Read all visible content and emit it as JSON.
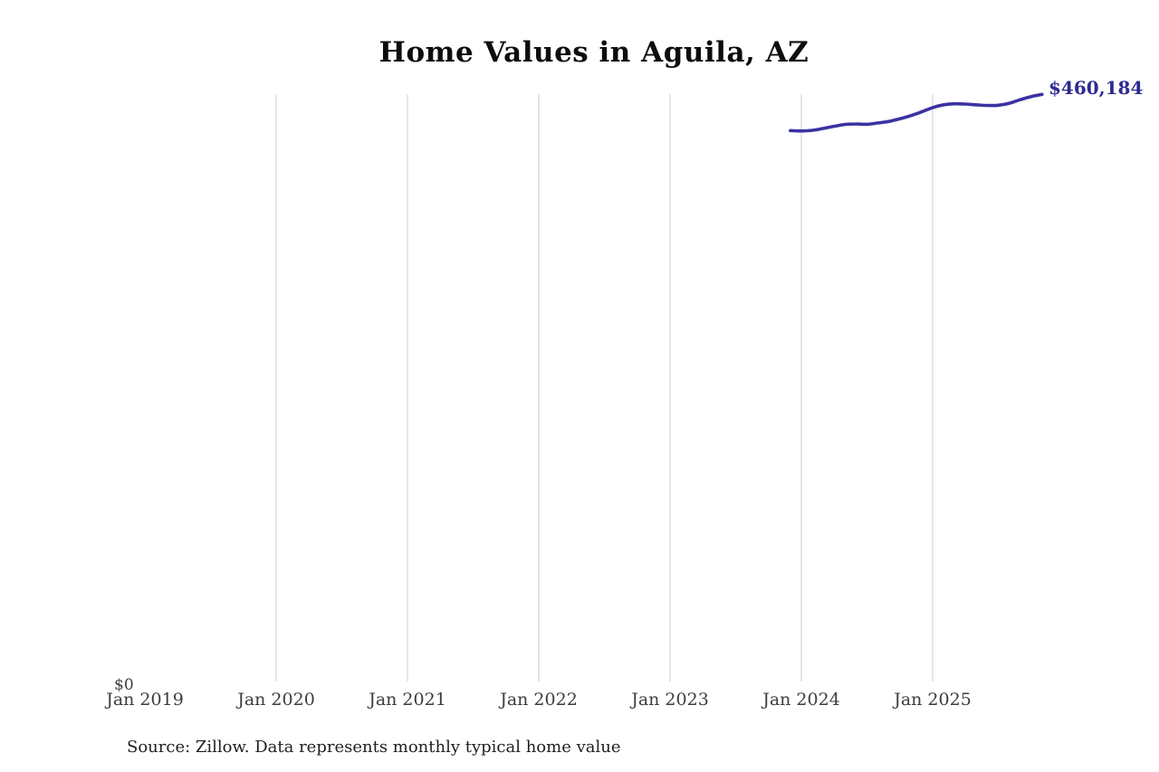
{
  "header": {
    "title": "Home Values in Aguila, AZ"
  },
  "footer": {
    "source_note": "Source: Zillow. Data represents monthly typical home value"
  },
  "chart_data": {
    "type": "line",
    "title": "Home Values in Aguila, AZ",
    "x_ticks": [
      {
        "label": "Jan 2019",
        "gridline": false
      },
      {
        "label": "Jan 2020",
        "gridline": true
      },
      {
        "label": "Jan 2021",
        "gridline": true
      },
      {
        "label": "Jan 2022",
        "gridline": true
      },
      {
        "label": "Jan 2023",
        "gridline": true
      },
      {
        "label": "Jan 2024",
        "gridline": true
      },
      {
        "label": "Jan 2025",
        "gridline": true
      }
    ],
    "y_axis": {
      "zero_label": "$0"
    },
    "ylim": [
      0,
      460184
    ],
    "end_label": "$460,184",
    "end_label_color": "#2d2b8f",
    "gridline_color": "#cccccc",
    "legend": "none",
    "series": [
      {
        "name": "Monthly typical home value",
        "color": "#3b32a2",
        "points": [
          {
            "date": "2023-12",
            "value": 431800
          },
          {
            "date": "2024-01",
            "value": 431500
          },
          {
            "date": "2024-02",
            "value": 432000
          },
          {
            "date": "2024-03",
            "value": 433500
          },
          {
            "date": "2024-04",
            "value": 435200
          },
          {
            "date": "2024-05",
            "value": 436600
          },
          {
            "date": "2024-06",
            "value": 437000
          },
          {
            "date": "2024-07",
            "value": 436800
          },
          {
            "date": "2024-08",
            "value": 437800
          },
          {
            "date": "2024-09",
            "value": 439000
          },
          {
            "date": "2024-10",
            "value": 441000
          },
          {
            "date": "2024-11",
            "value": 443500
          },
          {
            "date": "2024-12",
            "value": 446500
          },
          {
            "date": "2025-01",
            "value": 449800
          },
          {
            "date": "2025-02",
            "value": 452000
          },
          {
            "date": "2025-03",
            "value": 452800
          },
          {
            "date": "2025-04",
            "value": 452600
          },
          {
            "date": "2025-05",
            "value": 452000
          },
          {
            "date": "2025-06",
            "value": 451500
          },
          {
            "date": "2025-07",
            "value": 451700
          },
          {
            "date": "2025-08",
            "value": 453200
          },
          {
            "date": "2025-09",
            "value": 456000
          },
          {
            "date": "2025-10",
            "value": 458500
          },
          {
            "date": "2025-11",
            "value": 460184
          }
        ]
      }
    ]
  }
}
